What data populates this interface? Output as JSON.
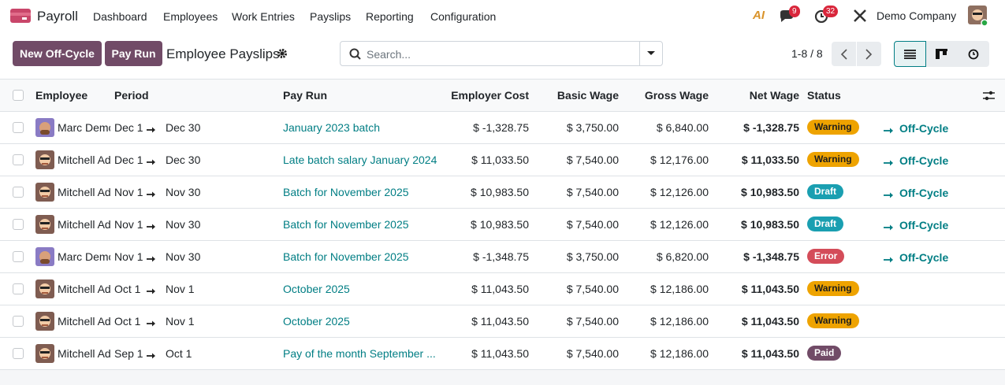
{
  "navbar": {
    "app": "Payroll",
    "menu": [
      "Dashboard",
      "Employees",
      "Work Entries",
      "Payslips",
      "Reporting",
      "Configuration"
    ],
    "ai": "AI",
    "messages_badge": "9",
    "activities_badge": "32",
    "company": "Demo Company"
  },
  "control": {
    "buttons": [
      "New Off-Cycle",
      "Pay Run"
    ],
    "title": "Employee Payslips",
    "search_placeholder": "Search...",
    "pager": "1-8 / 8"
  },
  "table": {
    "columns": [
      "Employee",
      "Period",
      "Pay Run",
      "Employer Cost",
      "Basic Wage",
      "Gross Wage",
      "Net Wage",
      "Status"
    ],
    "rows": [
      {
        "employee": "Marc Demo",
        "period_start": "Dec 1",
        "period_end": "Dec 30",
        "pay_run": "January 2023 batch",
        "employer_cost": "$ -1,328.75",
        "basic_wage": "$ 3,750.00",
        "gross_wage": "$ 6,840.00",
        "net_wage": "$ -1,328.75",
        "status": "Warning",
        "action": "Off-Cycle"
      },
      {
        "employee": "Mitchell Admin",
        "period_start": "Dec 1",
        "period_end": "Dec 30",
        "pay_run": "Late batch salary January 2024",
        "employer_cost": "$ 11,033.50",
        "basic_wage": "$ 7,540.00",
        "gross_wage": "$ 12,176.00",
        "net_wage": "$ 11,033.50",
        "status": "Warning",
        "action": "Off-Cycle"
      },
      {
        "employee": "Mitchell Admin",
        "period_start": "Nov 1",
        "period_end": "Nov 30",
        "pay_run": "Batch for November 2025",
        "employer_cost": "$ 10,983.50",
        "basic_wage": "$ 7,540.00",
        "gross_wage": "$ 12,126.00",
        "net_wage": "$ 10,983.50",
        "status": "Draft",
        "action": "Off-Cycle"
      },
      {
        "employee": "Mitchell Admin",
        "period_start": "Nov 1",
        "period_end": "Nov 30",
        "pay_run": "Batch for November 2025",
        "employer_cost": "$ 10,983.50",
        "basic_wage": "$ 7,540.00",
        "gross_wage": "$ 12,126.00",
        "net_wage": "$ 10,983.50",
        "status": "Draft",
        "action": "Off-Cycle"
      },
      {
        "employee": "Marc Demo",
        "period_start": "Nov 1",
        "period_end": "Nov 30",
        "pay_run": "Batch for November 2025",
        "employer_cost": "$ -1,348.75",
        "basic_wage": "$ 3,750.00",
        "gross_wage": "$ 6,820.00",
        "net_wage": "$ -1,348.75",
        "status": "Error",
        "action": "Off-Cycle"
      },
      {
        "employee": "Mitchell Admin",
        "period_start": "Oct 1",
        "period_end": "Nov 1",
        "pay_run": "October 2025",
        "employer_cost": "$ 11,043.50",
        "basic_wage": "$ 7,540.00",
        "gross_wage": "$ 12,186.00",
        "net_wage": "$ 11,043.50",
        "status": "Warning"
      },
      {
        "employee": "Mitchell Admin",
        "period_start": "Oct 1",
        "period_end": "Nov 1",
        "pay_run": "October 2025",
        "employer_cost": "$ 11,043.50",
        "basic_wage": "$ 7,540.00",
        "gross_wage": "$ 12,186.00",
        "net_wage": "$ 11,043.50",
        "status": "Warning"
      },
      {
        "employee": "Mitchell Admin",
        "period_start": "Sep 1",
        "period_end": "Oct 1",
        "pay_run": "Pay of the month September ...",
        "employer_cost": "$ 11,043.50",
        "basic_wage": "$ 7,540.00",
        "gross_wage": "$ 12,186.00",
        "net_wage": "$ 11,043.50",
        "status": "Paid"
      }
    ]
  }
}
